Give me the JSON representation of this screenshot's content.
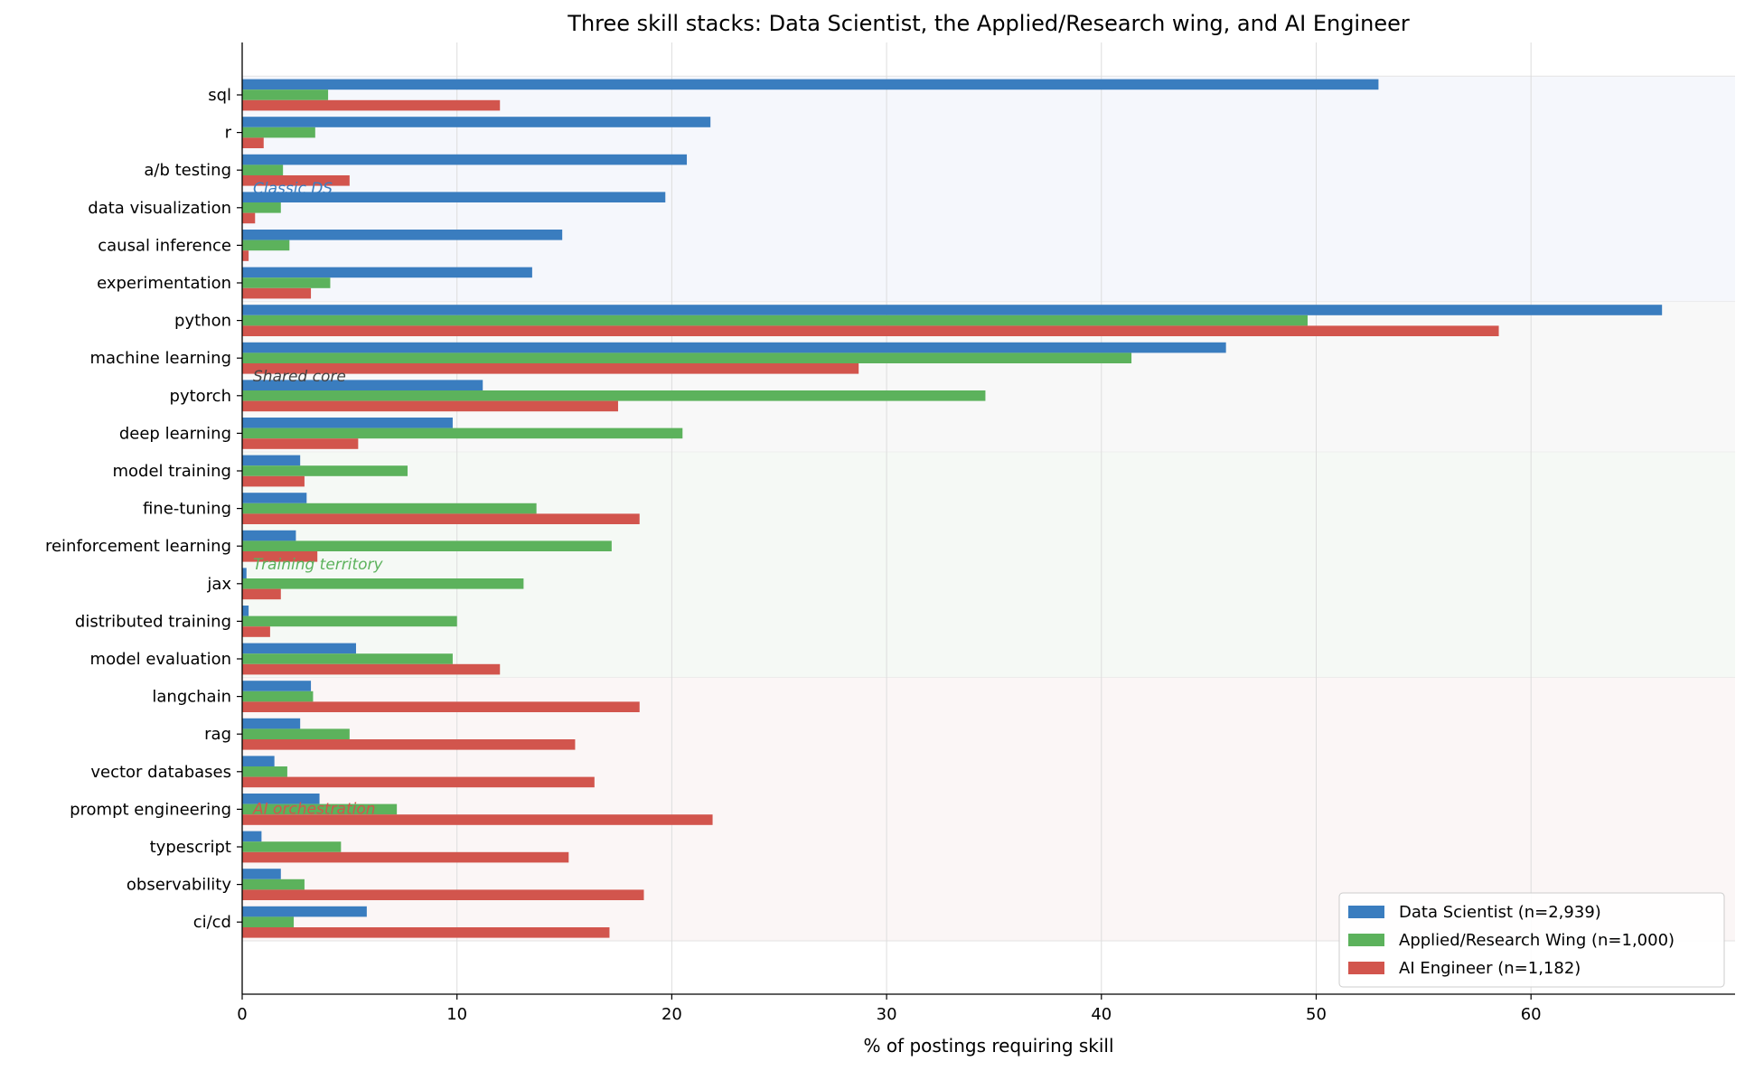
{
  "chart_data": {
    "type": "bar",
    "orientation": "horizontal",
    "title": "Three skill stacks: Data Scientist, the Applied/Research wing, and AI Engineer",
    "xlabel": "% of postings requiring skill",
    "ylabel": "",
    "xlim": [
      0,
      69.5
    ],
    "xticks": [
      0,
      10,
      20,
      30,
      40,
      50,
      60
    ],
    "grid": "vertical",
    "legend_position": "bottom-right",
    "categories": [
      "sql",
      "r",
      "a/b testing",
      "data visualization",
      "causal inference",
      "experimentation",
      "python",
      "machine learning",
      "pytorch",
      "deep learning",
      "model training",
      "fine-tuning",
      "reinforcement learning",
      "jax",
      "distributed training",
      "model evaluation",
      "langchain",
      "rag",
      "vector databases",
      "prompt engineering",
      "typescript",
      "observability",
      "ci/cd"
    ],
    "series": [
      {
        "name": "Data Scientist (n=2,939)",
        "color": "#3a7dbf",
        "values": [
          52.9,
          21.8,
          20.7,
          19.7,
          14.9,
          13.5,
          66.1,
          45.8,
          11.2,
          9.8,
          2.7,
          3.0,
          2.5,
          0.2,
          0.3,
          5.3,
          3.2,
          2.7,
          1.5,
          3.6,
          0.9,
          1.8,
          5.8
        ]
      },
      {
        "name": "Applied/Research Wing (n=1,000)",
        "color": "#5cb25c",
        "values": [
          4.0,
          3.4,
          1.9,
          1.8,
          2.2,
          4.1,
          49.6,
          41.4,
          34.6,
          20.5,
          7.7,
          13.7,
          17.2,
          13.1,
          10.0,
          9.8,
          3.3,
          5.0,
          2.1,
          7.2,
          4.6,
          2.9,
          2.4
        ]
      },
      {
        "name": "AI Engineer (n=1,182)",
        "color": "#d2554d",
        "values": [
          12.0,
          1.0,
          5.0,
          0.6,
          0.3,
          3.2,
          58.5,
          28.7,
          17.5,
          5.4,
          2.9,
          18.5,
          3.5,
          1.8,
          1.3,
          12.0,
          18.5,
          15.5,
          16.4,
          21.9,
          15.2,
          18.7,
          17.1
        ]
      }
    ],
    "groups": [
      {
        "label": "Classic DS",
        "start": 0,
        "end": 5,
        "color": "#3a7dbf",
        "bg": "#f5f7fc"
      },
      {
        "label": "Shared core",
        "start": 6,
        "end": 9,
        "color": "#444444",
        "bg": "#f8f8f8"
      },
      {
        "label": "Training territory",
        "start": 10,
        "end": 15,
        "color": "#5cb25c",
        "bg": "#f5f9f5"
      },
      {
        "label": "AI orchestration",
        "start": 16,
        "end": 22,
        "color": "#d2554d",
        "bg": "#fbf6f6"
      }
    ]
  }
}
